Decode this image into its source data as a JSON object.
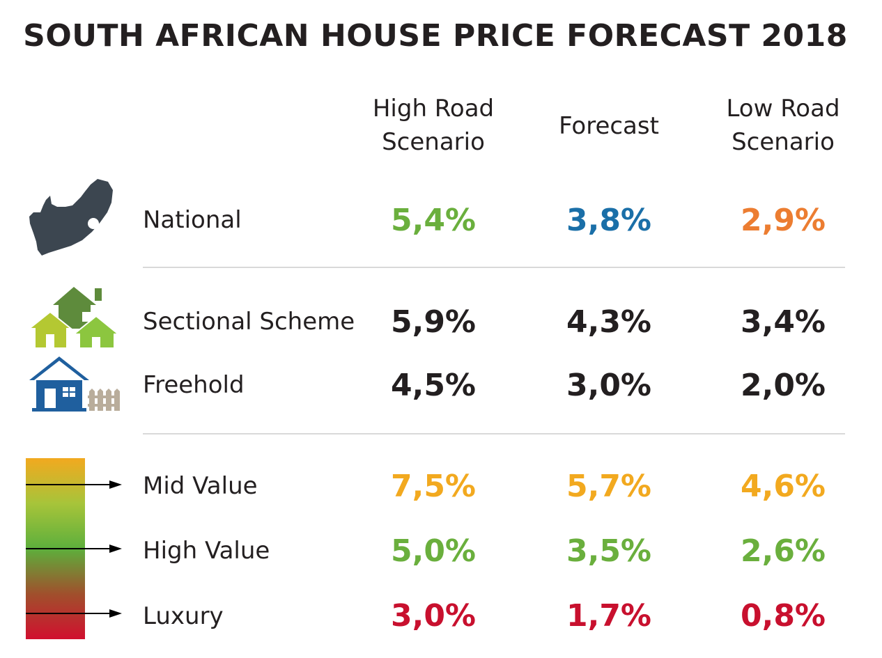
{
  "title": "SOUTH AFRICAN HOUSE PRICE FORECAST 2018",
  "columns": {
    "high": [
      "High Road",
      "Scenario"
    ],
    "forecast": "Forecast",
    "low": [
      "Low Road",
      "Scenario"
    ]
  },
  "rows": [
    {
      "label": "National",
      "icon": "south-africa-map-icon",
      "high": "5,4%",
      "forecast": "3,8%",
      "low": "2,9%"
    },
    {
      "label": "Sectional Scheme",
      "icon": "houses-cluster-icon",
      "high": "5,9%",
      "forecast": "4,3%",
      "low": "3,4%"
    },
    {
      "label": "Freehold",
      "icon": "house-with-fence-icon",
      "high": "4,5%",
      "forecast": "3,0%",
      "low": "2,0%"
    },
    {
      "label": "Mid Value",
      "icon": "arrow-right-icon",
      "high": "7,5%",
      "forecast": "5,7%",
      "low": "4,6%"
    },
    {
      "label": "High Value",
      "icon": "arrow-right-icon",
      "high": "5,0%",
      "forecast": "3,5%",
      "low": "2,6%"
    },
    {
      "label": "Luxury",
      "icon": "arrow-right-icon",
      "high": "3,0%",
      "forecast": "1,7%",
      "low": "0,8%"
    }
  ],
  "colors": {
    "title": "#231f20",
    "national_high": "#6aaf3d",
    "national_forecast": "#1a6fa8",
    "national_low": "#ec7d31",
    "property_type": "#231f20",
    "mid_value": "#f2a91f",
    "high_value": "#6aaf3d",
    "luxury": "#c8102e",
    "map": "#3c4650",
    "house_blue": "#1f5f9e",
    "house_green_dark": "#5e8b3c",
    "house_green_light": "#8cc63f"
  }
}
